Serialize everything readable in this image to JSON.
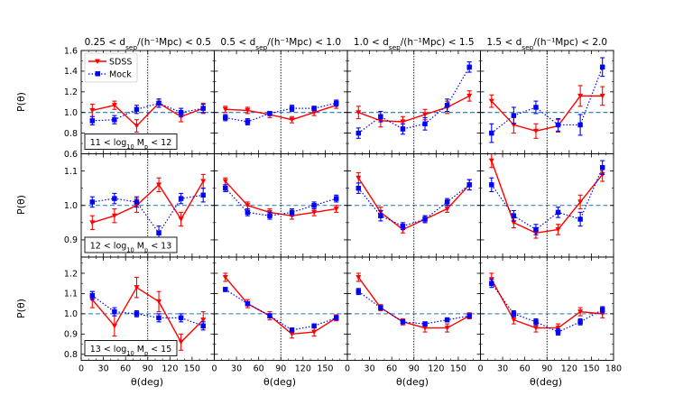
{
  "colors": {
    "sdss": "#ff0000",
    "mock": "#0000ff",
    "ref": "#1f77b4",
    "vline": "#000000"
  },
  "chart_data": {
    "type": "scatter",
    "xlabel": "θ(deg)",
    "ylabel": "P(θ)",
    "xlim": [
      0,
      180
    ],
    "x_ticks": [
      0,
      30,
      60,
      90,
      120,
      150,
      180
    ],
    "x": [
      15,
      45,
      75,
      105,
      135,
      165
    ],
    "column_titles": [
      {
        "pre": "0.25 < d",
        "sub": "sep",
        "post": "/(h⁻¹Mpc) < 0.5"
      },
      {
        "pre": "0.5 < d",
        "sub": "sep",
        "post": "/(h⁻¹Mpc) < 1.0"
      },
      {
        "pre": "1.0 < d",
        "sub": "sep",
        "post": "/(h⁻¹Mpc) < 1.5"
      },
      {
        "pre": "1.5 < d",
        "sub": "sep",
        "post": "/(h⁻¹Mpc) < 2.0"
      }
    ],
    "row_labels": [
      {
        "pre": "11 < log",
        "sub": "10",
        "mid": " M",
        "sub2": "p",
        "post": " < 12"
      },
      {
        "pre": "12 < log",
        "sub": "10",
        "mid": " M",
        "sub2": "p",
        "post": " < 13"
      },
      {
        "pre": "13 < log",
        "sub": "10",
        "mid": " M",
        "sub2": "p",
        "post": " < 15"
      }
    ],
    "legend": {
      "sdss": "SDSS",
      "mock": "Mock",
      "position": "top-left"
    },
    "reference_line": 1.0,
    "rows": [
      {
        "ylim": [
          0.6,
          1.6
        ],
        "y_ticks": [
          "0.6",
          "0.8",
          "1.0",
          "1.2",
          "1.4",
          "1.6"
        ],
        "y_tick_values": [
          0.6,
          0.8,
          1.0,
          1.2,
          1.4,
          1.6
        ],
        "panels": [
          {
            "vline": 90,
            "series": [
              {
                "name": "SDSS",
                "values": [
                  1.02,
                  1.07,
                  0.87,
                  1.09,
                  0.96,
                  1.04
                ],
                "errors": [
                  0.06,
                  0.04,
                  0.06,
                  0.04,
                  0.05,
                  0.05
                ]
              },
              {
                "name": "Mock",
                "values": [
                  0.92,
                  0.93,
                  1.03,
                  1.09,
                  1.0,
                  1.04
                ],
                "errors": [
                  0.04,
                  0.04,
                  0.04,
                  0.04,
                  0.04,
                  0.04
                ]
              }
            ]
          },
          {
            "vline": 90,
            "series": [
              {
                "name": "SDSS",
                "values": [
                  1.03,
                  1.02,
                  0.98,
                  0.93,
                  1.0,
                  1.07
                ],
                "errors": [
                  0.03,
                  0.03,
                  0.03,
                  0.03,
                  0.03,
                  0.03
                ]
              },
              {
                "name": "Mock",
                "values": [
                  0.95,
                  0.91,
                  0.99,
                  1.04,
                  1.04,
                  1.09
                ],
                "errors": [
                  0.03,
                  0.03,
                  0.02,
                  0.03,
                  0.02,
                  0.03
                ]
              }
            ]
          },
          {
            "vline": 90,
            "series": [
              {
                "name": "SDSS",
                "values": [
                  1.0,
                  0.92,
                  0.91,
                  0.98,
                  1.05,
                  1.16
                ],
                "errors": [
                  0.06,
                  0.06,
                  0.05,
                  0.05,
                  0.06,
                  0.05
                ]
              },
              {
                "name": "Mock",
                "values": [
                  0.8,
                  0.96,
                  0.84,
                  0.89,
                  1.07,
                  1.44
                ],
                "errors": [
                  0.05,
                  0.05,
                  0.05,
                  0.06,
                  0.06,
                  0.05
                ]
              }
            ]
          },
          {
            "vline": 90,
            "series": [
              {
                "name": "SDSS",
                "values": [
                  1.11,
                  0.88,
                  0.82,
                  0.87,
                  1.16,
                  1.16
                ],
                "errors": [
                  0.06,
                  0.08,
                  0.07,
                  0.06,
                  0.1,
                  0.09
                ]
              },
              {
                "name": "Mock",
                "values": [
                  0.8,
                  0.97,
                  1.05,
                  0.88,
                  0.88,
                  1.44
                ],
                "errors": [
                  0.09,
                  0.08,
                  0.06,
                  0.06,
                  0.1,
                  0.09
                ]
              }
            ]
          }
        ]
      },
      {
        "ylim": [
          0.85,
          1.15
        ],
        "y_ticks": [
          "0.9",
          "1.0",
          "1.1"
        ],
        "y_tick_values": [
          0.9,
          1.0,
          1.1
        ],
        "panels": [
          {
            "vline": 90,
            "series": [
              {
                "name": "SDSS",
                "values": [
                  0.95,
                  0.97,
                  1.0,
                  1.06,
                  0.96,
                  1.07
                ],
                "errors": [
                  0.02,
                  0.02,
                  0.02,
                  0.02,
                  0.02,
                  0.02
                ]
              },
              {
                "name": "Mock",
                "values": [
                  1.01,
                  1.02,
                  1.01,
                  0.92,
                  1.02,
                  1.03
                ],
                "errors": [
                  0.015,
                  0.015,
                  0.015,
                  0.02,
                  0.015,
                  0.02
                ]
              }
            ]
          },
          {
            "vline": 90,
            "series": [
              {
                "name": "SDSS",
                "values": [
                  1.07,
                  1.0,
                  0.98,
                  0.97,
                  0.98,
                  0.99
                ],
                "errors": [
                  0.01,
                  0.01,
                  0.01,
                  0.01,
                  0.01,
                  0.01
                ]
              },
              {
                "name": "Mock",
                "values": [
                  1.05,
                  0.98,
                  0.97,
                  0.98,
                  1.0,
                  1.02
                ],
                "errors": [
                  0.01,
                  0.01,
                  0.01,
                  0.01,
                  0.01,
                  0.01
                ]
              }
            ]
          },
          {
            "vline": 90,
            "series": [
              {
                "name": "SDSS",
                "values": [
                  1.08,
                  0.98,
                  0.93,
                  0.96,
                  0.99,
                  1.06
                ],
                "errors": [
                  0.015,
                  0.015,
                  0.01,
                  0.01,
                  0.01,
                  0.015
                ]
              },
              {
                "name": "Mock",
                "values": [
                  1.05,
                  0.97,
                  0.94,
                  0.96,
                  1.01,
                  1.06
                ],
                "errors": [
                  0.015,
                  0.015,
                  0.01,
                  0.01,
                  0.01,
                  0.015
                ]
              }
            ]
          },
          {
            "vline": 90,
            "series": [
              {
                "name": "SDSS",
                "values": [
                  1.13,
                  0.95,
                  0.92,
                  0.93,
                  1.01,
                  1.09
                ],
                "errors": [
                  0.02,
                  0.015,
                  0.015,
                  0.015,
                  0.02,
                  0.02
                ]
              },
              {
                "name": "Mock",
                "values": [
                  1.06,
                  0.97,
                  0.93,
                  0.98,
                  0.96,
                  1.11
                ],
                "errors": [
                  0.02,
                  0.015,
                  0.015,
                  0.015,
                  0.02,
                  0.02
                ]
              }
            ]
          }
        ]
      },
      {
        "ylim": [
          0.77,
          1.28
        ],
        "y_ticks": [
          "0.8",
          "0.9",
          "1.0",
          "1.1",
          "1.2"
        ],
        "y_tick_values": [
          0.8,
          0.9,
          1.0,
          1.1,
          1.2
        ],
        "panels": [
          {
            "vline": 90,
            "series": [
              {
                "name": "SDSS",
                "values": [
                  1.07,
                  0.94,
                  1.13,
                  1.06,
                  0.86,
                  0.97
                ],
                "errors": [
                  0.04,
                  0.05,
                  0.05,
                  0.05,
                  0.04,
                  0.04
                ]
              },
              {
                "name": "Mock",
                "values": [
                  1.09,
                  1.01,
                  1.0,
                  0.98,
                  0.98,
                  0.94
                ],
                "errors": [
                  0.02,
                  0.02,
                  0.015,
                  0.02,
                  0.02,
                  0.02
                ]
              }
            ]
          },
          {
            "vline": 90,
            "series": [
              {
                "name": "SDSS",
                "values": [
                  1.18,
                  1.05,
                  0.99,
                  0.9,
                  0.91,
                  0.98
                ],
                "errors": [
                  0.02,
                  0.02,
                  0.02,
                  0.02,
                  0.02,
                  0.015
                ]
              },
              {
                "name": "Mock",
                "values": [
                  1.12,
                  1.05,
                  0.99,
                  0.92,
                  0.94,
                  0.98
                ],
                "errors": [
                  0.01,
                  0.01,
                  0.01,
                  0.01,
                  0.01,
                  0.01
                ]
              }
            ]
          },
          {
            "vline": 90,
            "series": [
              {
                "name": "SDSS",
                "values": [
                  1.18,
                  1.03,
                  0.96,
                  0.93,
                  0.93,
                  0.99
                ],
                "errors": [
                  0.02,
                  0.015,
                  0.015,
                  0.02,
                  0.02,
                  0.015
                ]
              },
              {
                "name": "Mock",
                "values": [
                  1.11,
                  1.03,
                  0.96,
                  0.95,
                  0.97,
                  0.99
                ],
                "errors": [
                  0.015,
                  0.01,
                  0.01,
                  0.01,
                  0.01,
                  0.01
                ]
              }
            ]
          },
          {
            "vline": 90,
            "series": [
              {
                "name": "SDSS",
                "values": [
                  1.17,
                  0.97,
                  0.93,
                  0.93,
                  1.01,
                  1.0
                ],
                "errors": [
                  0.03,
                  0.02,
                  0.02,
                  0.02,
                  0.02,
                  0.02
                ]
              },
              {
                "name": "Mock",
                "values": [
                  1.15,
                  1.0,
                  0.96,
                  0.91,
                  0.96,
                  1.02
                ],
                "errors": [
                  0.02,
                  0.015,
                  0.015,
                  0.015,
                  0.015,
                  0.015
                ]
              }
            ]
          }
        ]
      }
    ]
  }
}
